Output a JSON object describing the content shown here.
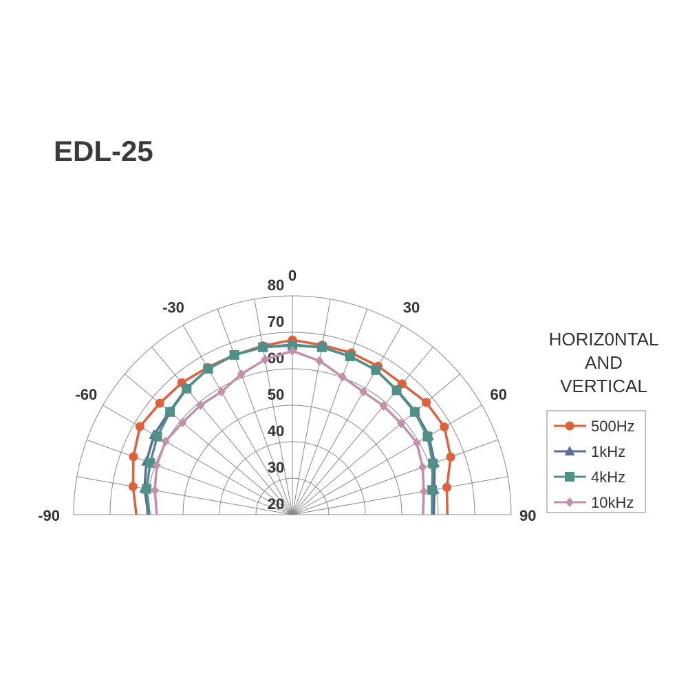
{
  "chart_data": {
    "type": "polar-line",
    "title": "EDL-25",
    "legend_title": [
      "HORIZ0NTAL",
      "AND",
      "VERTICAL"
    ],
    "angles": [
      -90,
      -80,
      -70,
      -60,
      -50,
      -40,
      -30,
      -20,
      -10,
      0,
      10,
      20,
      30,
      40,
      50,
      60,
      70,
      80,
      90
    ],
    "angle_tick_labels": [
      "-90",
      "-60",
      "-30",
      "0",
      "30",
      "60",
      "90"
    ],
    "radial_range": [
      20,
      80
    ],
    "radial_tick_labels": [
      "20",
      "30",
      "40",
      "50",
      "60",
      "70",
      "80"
    ],
    "angular_grid_step": 10,
    "grid": true,
    "legend_position": "right",
    "series": [
      {
        "name": "500Hz",
        "marker": "circle",
        "color": "#e0603a",
        "values": [
          62.8,
          64.4,
          66.4,
          68.3,
          67.5,
          67.2,
          66.6,
          66.6,
          67.0,
          67.9,
          67.2,
          67.2,
          67.0,
          66.8,
          67.9,
          68.1,
          66.2,
          63.0,
          62.5
        ]
      },
      {
        "name": "1kHz",
        "marker": "triangle",
        "color": "#5b6b9a",
        "values": [
          59.5,
          61.2,
          62.6,
          63.8,
          64.0,
          65.2,
          66.2,
          66.6,
          66.6,
          66.6,
          66.6,
          66.2,
          65.8,
          64.6,
          64.0,
          63.2,
          61.5,
          59.5,
          58.8
        ]
      },
      {
        "name": "4kHz",
        "marker": "square",
        "color": "#4f9088",
        "values": [
          59.2,
          60.6,
          61.5,
          62.8,
          63.8,
          65.1,
          66.2,
          66.6,
          66.6,
          66.4,
          66.6,
          66.2,
          65.8,
          64.5,
          63.8,
          62.8,
          61.0,
          58.9,
          58.3
        ]
      },
      {
        "name": "10kHz",
        "marker": "diamond",
        "color": "#c48fa8",
        "values": [
          57.2,
          58.3,
          59.6,
          60.2,
          59.3,
          59.2,
          58.9,
          61.0,
          63.2,
          64.9,
          62.8,
          60.2,
          58.9,
          58.9,
          58.9,
          59.4,
          58.0,
          56.6,
          55.8
        ]
      }
    ]
  }
}
